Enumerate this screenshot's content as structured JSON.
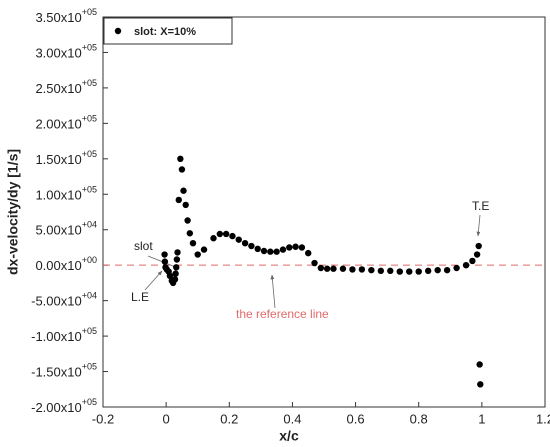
{
  "chart_data": {
    "type": "scatter",
    "x_label": "x/c",
    "y_label": "dx-velocity/dy [1/s]",
    "series": [
      {
        "name": "slot: X=10%",
        "color": "#000000",
        "x": [
          -0.005,
          -0.004,
          -0.002,
          0.002,
          0.008,
          0.012,
          0.018,
          0.022,
          0.028,
          0.03,
          0.032,
          0.034,
          0.036,
          0.04,
          0.045,
          0.05,
          0.055,
          0.062,
          0.068,
          0.075,
          0.085,
          0.1,
          0.12,
          0.15,
          0.17,
          0.19,
          0.21,
          0.23,
          0.25,
          0.27,
          0.29,
          0.31,
          0.33,
          0.35,
          0.37,
          0.39,
          0.41,
          0.43,
          0.45,
          0.47,
          0.49,
          0.51,
          0.53,
          0.56,
          0.59,
          0.62,
          0.65,
          0.68,
          0.71,
          0.74,
          0.77,
          0.8,
          0.83,
          0.86,
          0.89,
          0.92,
          0.95,
          0.97,
          0.985,
          0.99,
          0.993,
          0.995
        ],
        "values": [
          15000,
          5000,
          -3000,
          -6000,
          -9000,
          -15000,
          -22000,
          -25000,
          -20000,
          -12000,
          -3000,
          8000,
          18000,
          92000,
          150000,
          135000,
          105000,
          85000,
          63000,
          45000,
          31000,
          15000,
          22000,
          38000,
          44000,
          44000,
          41000,
          36000,
          31000,
          27000,
          23000,
          20000,
          19000,
          19000,
          22000,
          25000,
          26000,
          25000,
          17000,
          3000,
          -4000,
          -5000,
          -5000,
          -5000,
          -6000,
          -6000,
          -7000,
          -8000,
          -8000,
          -9000,
          -9000,
          -9000,
          -8000,
          -7000,
          -7000,
          -4000,
          0,
          6000,
          15000,
          27000,
          -140000,
          -168000
        ]
      }
    ],
    "reference_line": {
      "label": "the reference line",
      "y": 0,
      "color": "#e06a6a"
    },
    "annotations": [
      "slot",
      "L.E",
      "T.E"
    ],
    "xlim": [
      -0.2,
      1.2
    ],
    "xticks": [
      -0.2,
      0,
      0.2,
      0.4,
      0.6,
      0.8,
      1,
      1.2
    ],
    "ylim": [
      -200000,
      350000
    ],
    "yticks": [
      {
        "value": -200000,
        "label": "-2.00x10+05"
      },
      {
        "value": -150000,
        "label": "-1.50x10+05"
      },
      {
        "value": -100000,
        "label": "-1.00x10+05"
      },
      {
        "value": -50000,
        "label": "-5.00x10+04"
      },
      {
        "value": 0,
        "label": "0.00x10+00"
      },
      {
        "value": 50000,
        "label": "5.00x10+04"
      },
      {
        "value": 100000,
        "label": "1.00x10+05"
      },
      {
        "value": 150000,
        "label": "1.50x10+05"
      },
      {
        "value": 200000,
        "label": "2.00x10+05"
      },
      {
        "value": 250000,
        "label": "2.50x10+05"
      },
      {
        "value": 300000,
        "label": "3.00x10+05"
      },
      {
        "value": 350000,
        "label": "3.50x10+05"
      }
    ],
    "grid": false,
    "legend": "top-left"
  }
}
